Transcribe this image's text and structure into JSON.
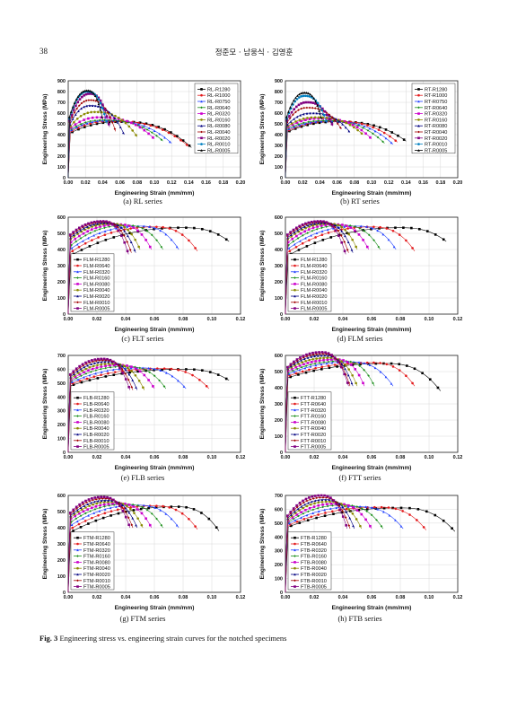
{
  "header": {
    "page_number": "38",
    "authors": "정준모 · 남웅식 · 김영훈"
  },
  "figure_caption": {
    "label": "Fig. 3",
    "text": "Engineering stress vs. engineering strain curves for the notched specimens"
  },
  "palette": [
    "#000000",
    "#e31a1c",
    "#1f3fff",
    "#1a8f1a",
    "#cc00cc",
    "#8a8a00",
    "#000080",
    "#a00000",
    "#800080",
    "#0080c0"
  ],
  "chart_data": [
    {
      "type": "line",
      "caption": "(a)  RL  series",
      "xlabel": "Engineering Strain (mm/mm)",
      "ylabel": "Engineering Stress (MPa)",
      "xlim": [
        0,
        0.2
      ],
      "ylim": [
        0,
        900
      ],
      "xticks": [
        "0.00",
        "0.02",
        "0.04",
        "0.06",
        "0.08",
        "0.10",
        "0.12",
        "0.14",
        "0.16",
        "0.18",
        "0.20"
      ],
      "yticks": [
        "0",
        "100",
        "200",
        "300",
        "400",
        "500",
        "600",
        "700",
        "800",
        "900"
      ],
      "legend_position": "top-right",
      "series": [
        {
          "name": "RL-R1280",
          "y0": 410,
          "peak_x": 0.06,
          "peak_y": 520,
          "end_x": 0.143,
          "end_y": 280
        },
        {
          "name": "RL-R1000",
          "y0": 420,
          "peak_x": 0.05,
          "peak_y": 525,
          "end_x": 0.14,
          "end_y": 290
        },
        {
          "name": "RL-R0750",
          "y0": 430,
          "peak_x": 0.045,
          "peak_y": 530,
          "end_x": 0.12,
          "end_y": 320
        },
        {
          "name": "RL-R0640",
          "y0": 440,
          "peak_x": 0.04,
          "peak_y": 535,
          "end_x": 0.11,
          "end_y": 340
        },
        {
          "name": "RL-R0320",
          "y0": 450,
          "peak_x": 0.035,
          "peak_y": 560,
          "end_x": 0.1,
          "end_y": 360
        },
        {
          "name": "RL-R0160",
          "y0": 460,
          "peak_x": 0.03,
          "peak_y": 610,
          "end_x": 0.08,
          "end_y": 380
        },
        {
          "name": "RL-R0080",
          "y0": 480,
          "peak_x": 0.025,
          "peak_y": 670,
          "end_x": 0.065,
          "end_y": 400
        },
        {
          "name": "RL-R0040",
          "y0": 500,
          "peak_x": 0.025,
          "peak_y": 720,
          "end_x": 0.055,
          "end_y": 430
        },
        {
          "name": "RL-R0020",
          "y0": 520,
          "peak_x": 0.025,
          "peak_y": 780,
          "end_x": 0.048,
          "end_y": 470
        },
        {
          "name": "RL-R0010",
          "y0": 540,
          "peak_x": 0.022,
          "peak_y": 800,
          "end_x": 0.045,
          "end_y": 500
        },
        {
          "name": "RL-R0005",
          "y0": 560,
          "peak_x": 0.022,
          "peak_y": 810,
          "end_x": 0.04,
          "end_y": 540
        }
      ]
    },
    {
      "type": "line",
      "caption": "(b)  RT  series",
      "xlabel": "Engineering Strain (mm/mm)",
      "ylabel": "Engineering Stress (MPa)",
      "xlim": [
        0,
        0.2
      ],
      "ylim": [
        0,
        900
      ],
      "xticks": [
        "0.00",
        "0.02",
        "0.04",
        "0.06",
        "0.08",
        "0.10",
        "0.12",
        "0.14",
        "0.16",
        "0.18",
        "0.20"
      ],
      "yticks": [
        "0",
        "100",
        "200",
        "300",
        "400",
        "500",
        "600",
        "700",
        "800",
        "900"
      ],
      "legend_position": "top-right",
      "series": [
        {
          "name": "RT-R1280",
          "y0": 420,
          "peak_x": 0.06,
          "peak_y": 520,
          "end_x": 0.14,
          "end_y": 340
        },
        {
          "name": "RT-R1000",
          "y0": 430,
          "peak_x": 0.055,
          "peak_y": 525,
          "end_x": 0.13,
          "end_y": 330
        },
        {
          "name": "RT-R0750",
          "y0": 440,
          "peak_x": 0.05,
          "peak_y": 525,
          "end_x": 0.125,
          "end_y": 310
        },
        {
          "name": "RT-R0640",
          "y0": 450,
          "peak_x": 0.045,
          "peak_y": 530,
          "end_x": 0.115,
          "end_y": 320
        },
        {
          "name": "RT-R0320",
          "y0": 460,
          "peak_x": 0.04,
          "peak_y": 550,
          "end_x": 0.1,
          "end_y": 360
        },
        {
          "name": "RT-R0160",
          "y0": 470,
          "peak_x": 0.035,
          "peak_y": 560,
          "end_x": 0.09,
          "end_y": 400
        },
        {
          "name": "RT-R0080",
          "y0": 480,
          "peak_x": 0.03,
          "peak_y": 600,
          "end_x": 0.075,
          "end_y": 420
        },
        {
          "name": "RT-R0040",
          "y0": 500,
          "peak_x": 0.025,
          "peak_y": 650,
          "end_x": 0.065,
          "end_y": 450
        },
        {
          "name": "RT-R0020",
          "y0": 520,
          "peak_x": 0.025,
          "peak_y": 700,
          "end_x": 0.055,
          "end_y": 480
        },
        {
          "name": "RT-R0010",
          "y0": 540,
          "peak_x": 0.022,
          "peak_y": 760,
          "end_x": 0.048,
          "end_y": 510
        },
        {
          "name": "RT-R0005",
          "y0": 560,
          "peak_x": 0.022,
          "peak_y": 790,
          "end_x": 0.042,
          "end_y": 540
        }
      ]
    },
    {
      "type": "line",
      "caption": "(c)  FLT  series",
      "xlabel": "Engineering Strain (mm/mm)",
      "ylabel": "Engineering Stress (MPa)",
      "xlim": [
        0,
        0.12
      ],
      "ylim": [
        0,
        600
      ],
      "xticks": [
        "0.00",
        "0.02",
        "0.04",
        "0.06",
        "0.08",
        "0.10",
        "0.12"
      ],
      "yticks": [
        "0",
        "100",
        "200",
        "300",
        "400",
        "500",
        "600"
      ],
      "legend_position": "bottom-left",
      "series": [
        {
          "name": "FLM-R1280",
          "y0": 360,
          "peak_x": 0.08,
          "peak_y": 535,
          "end_x": 0.112,
          "end_y": 450
        },
        {
          "name": "FLM-R0640",
          "y0": 380,
          "peak_x": 0.06,
          "peak_y": 540,
          "end_x": 0.09,
          "end_y": 390
        },
        {
          "name": "FLM-R0320",
          "y0": 400,
          "peak_x": 0.05,
          "peak_y": 545,
          "end_x": 0.077,
          "end_y": 400
        },
        {
          "name": "FLM-R0160",
          "y0": 420,
          "peak_x": 0.04,
          "peak_y": 550,
          "end_x": 0.066,
          "end_y": 400
        },
        {
          "name": "FLM-R0080",
          "y0": 440,
          "peak_x": 0.035,
          "peak_y": 555,
          "end_x": 0.058,
          "end_y": 400
        },
        {
          "name": "FLM-R0040",
          "y0": 460,
          "peak_x": 0.03,
          "peak_y": 560,
          "end_x": 0.05,
          "end_y": 400
        },
        {
          "name": "FLM-R0020",
          "y0": 470,
          "peak_x": 0.027,
          "peak_y": 565,
          "end_x": 0.047,
          "end_y": 380
        },
        {
          "name": "FLM-R0010",
          "y0": 480,
          "peak_x": 0.025,
          "peak_y": 570,
          "end_x": 0.044,
          "end_y": 380
        },
        {
          "name": "FLM-R0005",
          "y0": 490,
          "peak_x": 0.024,
          "peak_y": 575,
          "end_x": 0.042,
          "end_y": 370
        }
      ]
    },
    {
      "type": "line",
      "caption": "(d)  FLM  series",
      "xlabel": "Engineering Strain (mm/mm)",
      "ylabel": "Engineering Stress (MPa)",
      "xlim": [
        0,
        0.12
      ],
      "ylim": [
        0,
        600
      ],
      "xticks": [
        "0.00",
        "0.02",
        "0.04",
        "0.06",
        "0.08",
        "0.10",
        "0.12"
      ],
      "yticks": [
        "0",
        "100",
        "200",
        "300",
        "400",
        "500",
        "600"
      ],
      "legend_position": "bottom-left",
      "series": [
        {
          "name": "FLM-R1280",
          "y0": 360,
          "peak_x": 0.08,
          "peak_y": 535,
          "end_x": 0.112,
          "end_y": 450
        },
        {
          "name": "FLM-R0640",
          "y0": 380,
          "peak_x": 0.06,
          "peak_y": 540,
          "end_x": 0.09,
          "end_y": 390
        },
        {
          "name": "FLM-R0320",
          "y0": 400,
          "peak_x": 0.05,
          "peak_y": 545,
          "end_x": 0.077,
          "end_y": 400
        },
        {
          "name": "FLM-R0160",
          "y0": 420,
          "peak_x": 0.04,
          "peak_y": 550,
          "end_x": 0.066,
          "end_y": 400
        },
        {
          "name": "FLM-R0080",
          "y0": 440,
          "peak_x": 0.035,
          "peak_y": 555,
          "end_x": 0.058,
          "end_y": 400
        },
        {
          "name": "FLM-R0040",
          "y0": 460,
          "peak_x": 0.03,
          "peak_y": 560,
          "end_x": 0.05,
          "end_y": 400
        },
        {
          "name": "FLM-R0020",
          "y0": 470,
          "peak_x": 0.027,
          "peak_y": 565,
          "end_x": 0.047,
          "end_y": 380
        },
        {
          "name": "FLM-R0010",
          "y0": 480,
          "peak_x": 0.025,
          "peak_y": 570,
          "end_x": 0.044,
          "end_y": 380
        },
        {
          "name": "FLM-R0005",
          "y0": 490,
          "peak_x": 0.024,
          "peak_y": 575,
          "end_x": 0.042,
          "end_y": 370
        }
      ]
    },
    {
      "type": "line",
      "caption": "(e)  FLB  series",
      "xlabel": "Engineering Strain (mm/mm)",
      "ylabel": "Engineering Stress (MPa)",
      "xlim": [
        0,
        0.12
      ],
      "ylim": [
        0,
        700
      ],
      "xticks": [
        "0.00",
        "0.02",
        "0.04",
        "0.06",
        "0.08",
        "0.10",
        "0.12"
      ],
      "yticks": [
        "0",
        "100",
        "200",
        "300",
        "400",
        "500",
        "600",
        "700"
      ],
      "legend_position": "bottom-left",
      "series": [
        {
          "name": "FLB-R1280",
          "y0": 480,
          "peak_x": 0.08,
          "peak_y": 600,
          "end_x": 0.112,
          "end_y": 520
        },
        {
          "name": "FLB-R0640",
          "y0": 490,
          "peak_x": 0.065,
          "peak_y": 605,
          "end_x": 0.098,
          "end_y": 460
        },
        {
          "name": "FLB-R0320",
          "y0": 500,
          "peak_x": 0.05,
          "peak_y": 610,
          "end_x": 0.082,
          "end_y": 460
        },
        {
          "name": "FLB-R0160",
          "y0": 510,
          "peak_x": 0.04,
          "peak_y": 620,
          "end_x": 0.068,
          "end_y": 460
        },
        {
          "name": "FLB-R0080",
          "y0": 520,
          "peak_x": 0.035,
          "peak_y": 630,
          "end_x": 0.06,
          "end_y": 460
        },
        {
          "name": "FLB-R0040",
          "y0": 530,
          "peak_x": 0.03,
          "peak_y": 640,
          "end_x": 0.053,
          "end_y": 450
        },
        {
          "name": "FLB-R0020",
          "y0": 540,
          "peak_x": 0.027,
          "peak_y": 655,
          "end_x": 0.048,
          "end_y": 450
        },
        {
          "name": "FLB-R0010",
          "y0": 550,
          "peak_x": 0.025,
          "peak_y": 665,
          "end_x": 0.045,
          "end_y": 450
        },
        {
          "name": "FLB-R0005",
          "y0": 560,
          "peak_x": 0.024,
          "peak_y": 675,
          "end_x": 0.043,
          "end_y": 450
        }
      ]
    },
    {
      "type": "line",
      "caption": "(f)  FTT  series",
      "xlabel": "Engineering Strain (mm/mm)",
      "ylabel": "Engineering Stress (MPa)",
      "xlim": [
        0,
        0.12
      ],
      "ylim": [
        0,
        600
      ],
      "xticks": [
        "0.00",
        "0.02",
        "0.04",
        "0.06",
        "0.08",
        "0.10",
        "0.12"
      ],
      "yticks": [
        "0",
        "100",
        "200",
        "300",
        "400",
        "500",
        "600"
      ],
      "legend_position": "bottom-left",
      "series": [
        {
          "name": "FTT-R1280",
          "y0": 460,
          "peak_x": 0.07,
          "peak_y": 550,
          "end_x": 0.108,
          "end_y": 380
        },
        {
          "name": "FTT-R0640",
          "y0": 470,
          "peak_x": 0.06,
          "peak_y": 555,
          "end_x": 0.09,
          "end_y": 410
        },
        {
          "name": "FTT-R0320",
          "y0": 480,
          "peak_x": 0.045,
          "peak_y": 560,
          "end_x": 0.075,
          "end_y": 410
        },
        {
          "name": "FTT-R0160",
          "y0": 490,
          "peak_x": 0.04,
          "peak_y": 565,
          "end_x": 0.062,
          "end_y": 410
        },
        {
          "name": "FTT-R0080",
          "y0": 500,
          "peak_x": 0.035,
          "peak_y": 575,
          "end_x": 0.055,
          "end_y": 410
        },
        {
          "name": "FTT-R0040",
          "y0": 510,
          "peak_x": 0.03,
          "peak_y": 585,
          "end_x": 0.05,
          "end_y": 410
        },
        {
          "name": "FTT-R0020",
          "y0": 515,
          "peak_x": 0.027,
          "peak_y": 600,
          "end_x": 0.047,
          "end_y": 410
        },
        {
          "name": "FTT-R0010",
          "y0": 520,
          "peak_x": 0.026,
          "peak_y": 610,
          "end_x": 0.045,
          "end_y": 410
        },
        {
          "name": "FTT-R0005",
          "y0": 525,
          "peak_x": 0.025,
          "peak_y": 620,
          "end_x": 0.044,
          "end_y": 410
        }
      ]
    },
    {
      "type": "line",
      "caption": "(g)  FTM  series",
      "xlabel": "Engineering Strain (mm/mm)",
      "ylabel": "Engineering Stress (MPa)",
      "xlim": [
        0,
        0.12
      ],
      "ylim": [
        0,
        600
      ],
      "xticks": [
        "0.00",
        "0.02",
        "0.04",
        "0.06",
        "0.08",
        "0.10",
        "0.12"
      ],
      "yticks": [
        "0",
        "100",
        "200",
        "300",
        "400",
        "500",
        "600"
      ],
      "legend_position": "bottom-left",
      "series": [
        {
          "name": "FTM-R1280",
          "y0": 370,
          "peak_x": 0.075,
          "peak_y": 530,
          "end_x": 0.105,
          "end_y": 380
        },
        {
          "name": "FTM-R0640",
          "y0": 390,
          "peak_x": 0.06,
          "peak_y": 535,
          "end_x": 0.09,
          "end_y": 390
        },
        {
          "name": "FTM-R0320",
          "y0": 410,
          "peak_x": 0.048,
          "peak_y": 540,
          "end_x": 0.077,
          "end_y": 400
        },
        {
          "name": "FTM-R0160",
          "y0": 430,
          "peak_x": 0.04,
          "peak_y": 545,
          "end_x": 0.066,
          "end_y": 400
        },
        {
          "name": "FTM-R0080",
          "y0": 450,
          "peak_x": 0.035,
          "peak_y": 550,
          "end_x": 0.058,
          "end_y": 400
        },
        {
          "name": "FTM-R0040",
          "y0": 460,
          "peak_x": 0.03,
          "peak_y": 560,
          "end_x": 0.052,
          "end_y": 400
        },
        {
          "name": "FTM-R0020",
          "y0": 470,
          "peak_x": 0.027,
          "peak_y": 570,
          "end_x": 0.048,
          "end_y": 400
        },
        {
          "name": "FTM-R0010",
          "y0": 480,
          "peak_x": 0.025,
          "peak_y": 580,
          "end_x": 0.045,
          "end_y": 400
        },
        {
          "name": "FTM-R0005",
          "y0": 490,
          "peak_x": 0.024,
          "peak_y": 590,
          "end_x": 0.043,
          "end_y": 400
        }
      ]
    },
    {
      "type": "line",
      "caption": "(h)  FTB  series",
      "xlabel": "Engineering Strain (mm/mm)",
      "ylabel": "Engineering Stress (MPa)",
      "xlim": [
        0,
        0.12
      ],
      "ylim": [
        0,
        700
      ],
      "xticks": [
        "0.00",
        "0.02",
        "0.04",
        "0.06",
        "0.08",
        "0.10",
        "0.12"
      ],
      "yticks": [
        "0",
        "100",
        "200",
        "300",
        "400",
        "500",
        "600",
        "700"
      ],
      "legend_position": "bottom-left",
      "series": [
        {
          "name": "FTB-R1280",
          "y0": 470,
          "peak_x": 0.08,
          "peak_y": 610,
          "end_x": 0.118,
          "end_y": 440
        },
        {
          "name": "FTB-R0640",
          "y0": 480,
          "peak_x": 0.065,
          "peak_y": 615,
          "end_x": 0.098,
          "end_y": 450
        },
        {
          "name": "FTB-R0320",
          "y0": 490,
          "peak_x": 0.05,
          "peak_y": 620,
          "end_x": 0.082,
          "end_y": 460
        },
        {
          "name": "FTB-R0160",
          "y0": 500,
          "peak_x": 0.04,
          "peak_y": 630,
          "end_x": 0.068,
          "end_y": 460
        },
        {
          "name": "FTB-R0080",
          "y0": 510,
          "peak_x": 0.035,
          "peak_y": 640,
          "end_x": 0.06,
          "end_y": 460
        },
        {
          "name": "FTB-R0040",
          "y0": 520,
          "peak_x": 0.03,
          "peak_y": 655,
          "end_x": 0.053,
          "end_y": 460
        },
        {
          "name": "FTB-R0020",
          "y0": 530,
          "peak_x": 0.028,
          "peak_y": 670,
          "end_x": 0.048,
          "end_y": 460
        },
        {
          "name": "FTB-R0010",
          "y0": 540,
          "peak_x": 0.026,
          "peak_y": 685,
          "end_x": 0.045,
          "end_y": 460
        },
        {
          "name": "FTB-R0005",
          "y0": 550,
          "peak_x": 0.025,
          "peak_y": 700,
          "end_x": 0.043,
          "end_y": 460
        }
      ]
    }
  ]
}
